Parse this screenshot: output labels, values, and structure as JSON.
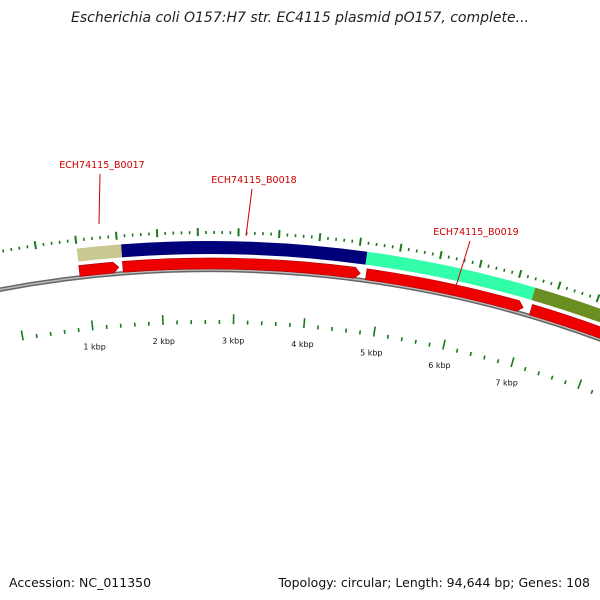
{
  "title": "Escherichia coli O157:H7 str. EC4115 plasmid pO157, complete...",
  "footer": {
    "accession": "Accession: NC_011350",
    "summary": "Topology: circular; Length: 94,644 bp; Genes: 108"
  },
  "colors": {
    "label": "#cc0000",
    "cds_arrow": "#ee0000",
    "ticks": "#1a7a1a",
    "backbone": "#888888",
    "gene_segments": [
      "#c8c890",
      "#00007a",
      "#33ffaa",
      "#6b8e23"
    ]
  },
  "kbp_labels": [
    "1 kbp",
    "2 kbp",
    "3 kbp",
    "4 kbp",
    "5 kbp",
    "6 kbp",
    "7 kbp"
  ],
  "gene_labels": [
    "ECH74115_B0017",
    "ECH74115_B0018",
    "ECH74115_B0019"
  ]
}
